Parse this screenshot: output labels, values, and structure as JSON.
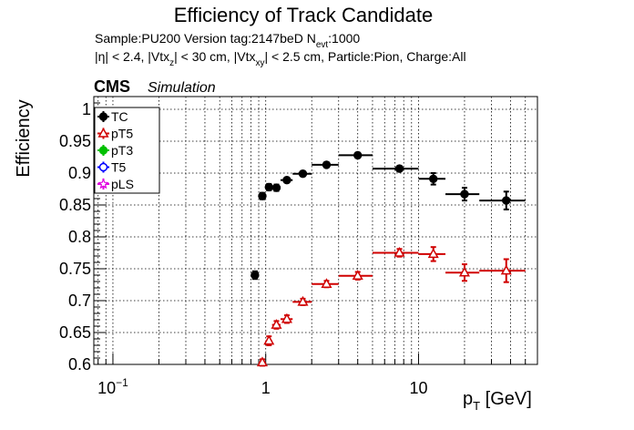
{
  "chart_data": {
    "type": "scatter",
    "title": "Efficiency of Track Candidate",
    "subtitle_lines": [
      {
        "main": "Sample:PU200   Version tag:2147beD  N",
        "sub": "evt",
        "tail": ":1000"
      },
      {
        "segments": [
          {
            "t": "|η| < 2.4, |Vtx",
            "s": false
          },
          {
            "t": "z",
            "s": true
          },
          {
            "t": "| < 30 cm, |Vtx",
            "s": false
          },
          {
            "t": "xy",
            "s": true
          },
          {
            "t": "| < 2.5 cm, Particle:Pion, Charge:All",
            "s": false
          }
        ]
      }
    ],
    "cms_label": "CMS",
    "cms_sublabel": "Simulation",
    "xlabel_main": "p",
    "xlabel_sub": "T",
    "xlabel_tail": " [GeV]",
    "ylabel": "Efficiency",
    "x_scale": "log",
    "xlim": [
      0.075,
      60
    ],
    "ylim": [
      0.6,
      1.02
    ],
    "grid": true,
    "legend_position": "top-left",
    "x_major_ticks": [
      {
        "v": 0.1,
        "base": "10",
        "exp": "−1"
      },
      {
        "v": 1,
        "base": "1",
        "exp": ""
      },
      {
        "v": 10,
        "base": "10",
        "exp": ""
      }
    ],
    "y_ticks": [
      {
        "v": 0.6,
        "label": "0.6"
      },
      {
        "v": 0.65,
        "label": "0.65"
      },
      {
        "v": 0.7,
        "label": "0.7"
      },
      {
        "v": 0.75,
        "label": "0.75"
      },
      {
        "v": 0.8,
        "label": "0.8"
      },
      {
        "v": 0.85,
        "label": "0.85"
      },
      {
        "v": 0.9,
        "label": "0.9"
      },
      {
        "v": 0.95,
        "label": "0.95"
      },
      {
        "v": 1.0,
        "label": "1"
      }
    ],
    "series": [
      {
        "name": "TC",
        "color": "#000000",
        "marker": "filled-circle",
        "points": [
          {
            "x": 0.85,
            "xlo": 0.8,
            "xhi": 0.9,
            "y": 0.74,
            "err": 0.006
          },
          {
            "x": 0.95,
            "xlo": 0.9,
            "xhi": 1.0,
            "y": 0.864,
            "err": 0.005
          },
          {
            "x": 1.05,
            "xlo": 1.0,
            "xhi": 1.1,
            "y": 0.878,
            "err": 0.005
          },
          {
            "x": 1.175,
            "xlo": 1.1,
            "xhi": 1.25,
            "y": 0.877,
            "err": 0.005
          },
          {
            "x": 1.375,
            "xlo": 1.25,
            "xhi": 1.5,
            "y": 0.889,
            "err": 0.004
          },
          {
            "x": 1.75,
            "xlo": 1.5,
            "xhi": 2.0,
            "y": 0.899,
            "err": 0.004
          },
          {
            "x": 2.5,
            "xlo": 2.0,
            "xhi": 3.0,
            "y": 0.913,
            "err": 0.004
          },
          {
            "x": 4.0,
            "xlo": 3.0,
            "xhi": 5.0,
            "y": 0.928,
            "err": 0.004
          },
          {
            "x": 7.5,
            "xlo": 5.0,
            "xhi": 10.0,
            "y": 0.907,
            "err": 0.004
          },
          {
            "x": 12.5,
            "xlo": 10.0,
            "xhi": 15.0,
            "y": 0.891,
            "err": 0.009
          },
          {
            "x": 20.0,
            "xlo": 15.0,
            "xhi": 25.0,
            "y": 0.867,
            "err": 0.01
          },
          {
            "x": 37.5,
            "xlo": 25.0,
            "xhi": 50.0,
            "y": 0.857,
            "err": 0.014
          }
        ]
      },
      {
        "name": "pT5",
        "color": "#d00000",
        "marker": "open-triangle",
        "points": [
          {
            "x": 0.95,
            "xlo": 0.9,
            "xhi": 1.0,
            "y": 0.603,
            "err": 0.005
          },
          {
            "x": 1.05,
            "xlo": 1.0,
            "xhi": 1.1,
            "y": 0.637,
            "err": 0.007
          },
          {
            "x": 1.175,
            "xlo": 1.1,
            "xhi": 1.25,
            "y": 0.662,
            "err": 0.006
          },
          {
            "x": 1.375,
            "xlo": 1.25,
            "xhi": 1.5,
            "y": 0.671,
            "err": 0.006
          },
          {
            "x": 1.75,
            "xlo": 1.5,
            "xhi": 2.0,
            "y": 0.698,
            "err": 0.005
          },
          {
            "x": 2.5,
            "xlo": 2.0,
            "xhi": 3.0,
            "y": 0.726,
            "err": 0.005
          },
          {
            "x": 4.0,
            "xlo": 3.0,
            "xhi": 5.0,
            "y": 0.739,
            "err": 0.006
          },
          {
            "x": 7.5,
            "xlo": 5.0,
            "xhi": 10.0,
            "y": 0.775,
            "err": 0.006
          },
          {
            "x": 12.5,
            "xlo": 10.0,
            "xhi": 15.0,
            "y": 0.773,
            "err": 0.011
          },
          {
            "x": 20.0,
            "xlo": 15.0,
            "xhi": 25.0,
            "y": 0.744,
            "err": 0.013
          },
          {
            "x": 37.5,
            "xlo": 25.0,
            "xhi": 50.0,
            "y": 0.747,
            "err": 0.018
          }
        ]
      },
      {
        "name": "pT3",
        "color": "#00c000",
        "marker": "filled-circle",
        "points": []
      },
      {
        "name": "T5",
        "color": "#0000ff",
        "marker": "open-circle",
        "points": []
      },
      {
        "name": "pLS",
        "color": "#e000e0",
        "marker": "open-star",
        "points": []
      }
    ]
  }
}
